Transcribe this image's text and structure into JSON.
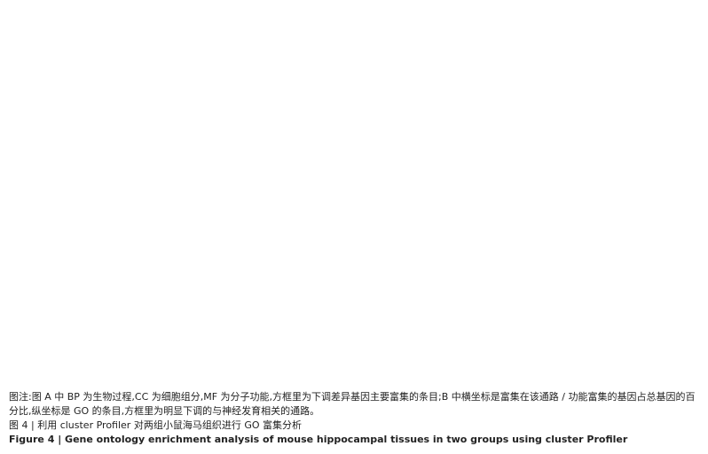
{
  "captions": {
    "note": "图注:图 A 中 BP 为生物过程,CC 为细胞组分,MF 为分子功能,方框里为下调差异基因主要富集的条目;B 中横坐标是富集在该通路 / 功能富集的基因占总基因的百分比,纵坐标是 GO 的条目,方框里为明显下调的与神经发育相关的通路。",
    "cn": "图 4 | 利用 cluster Profiler 对两组小鼠海马组织进行 GO 富集分析",
    "en": "Figure 4 | Gene ontology enrichment analysis of mouse hippocampal tissues in two groups using cluster Profiler"
  }
}
